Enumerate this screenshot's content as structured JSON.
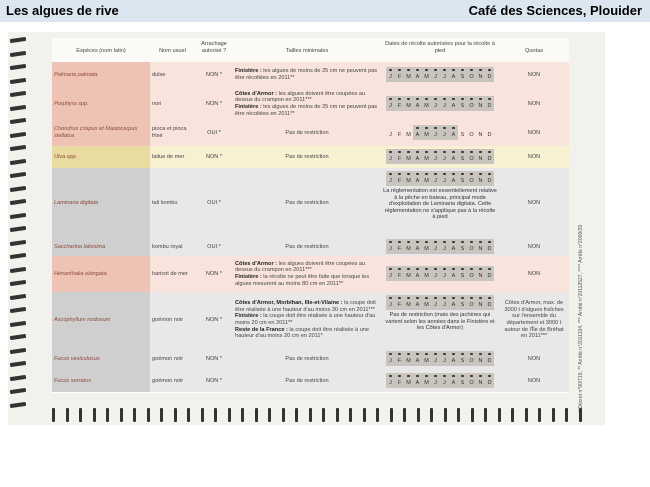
{
  "header": {
    "title": "Les algues de rive",
    "source": "Café des Sciences, Plouider"
  },
  "table": {
    "columns": [
      "Espèces (nom latin)",
      "Nom usuel",
      "Arrachage autorisé ?",
      "Tailles minimales",
      "Dates de récolte autorisées pour la récolte à pied",
      "Quotas"
    ],
    "months": [
      "J",
      "F",
      "M",
      "A",
      "M",
      "J",
      "J",
      "A",
      "S",
      "O",
      "N",
      "D"
    ],
    "rows": [
      {
        "species": "Palmaria palmata",
        "name": "dulse",
        "uproot": "NON *",
        "size_rules": [
          {
            "region": "Finistère :",
            "text": "les algues de moins de 25 cm ne peuvent pas être récoltées en 2011**"
          }
        ],
        "quota": "NON"
      },
      {
        "species": "Porphyra spp.",
        "name": "nori",
        "uproot": "NON *",
        "size_rules": [
          {
            "region": "Côtes d'Armor :",
            "text": "les algues doivent être coupées au dessus du crampon en 2011***"
          },
          {
            "region": "Finistère :",
            "text": "les algues de moins de 25 cm ne peuvent pas être récoltées en 2011**"
          }
        ],
        "quota": "NON"
      },
      {
        "species": "Chondrus crispus et Mastocarpus stellatus",
        "name": "pioca et pioca frisé",
        "uproot": "OUI *",
        "size_rules": [
          {
            "text": "Pas de restriction"
          }
        ],
        "quota": "NON"
      },
      {
        "species": "Ulva spp.",
        "name": "laitue de mer",
        "uproot": "NON *",
        "size_rules": [
          {
            "text": "Pas de restriction"
          }
        ],
        "quota": "NON"
      },
      {
        "species": "Laminaria digitata",
        "name": "tali kombu",
        "uproot": "OUI *",
        "size_rules": [
          {
            "text": "Pas de restriction"
          }
        ],
        "date_note": "La réglementation est essentiellement relative à la pêche en bateau, principal mode d'exploitation de Laminaria digitata. Cette réglementation ne s'applique pas à la récolte à pied",
        "quota": "NON"
      },
      {
        "species": "Saccharina latissima",
        "name": "kombu royal",
        "uproot": "OUI *",
        "size_rules": [
          {
            "text": "Pas de restriction"
          }
        ],
        "quota": "NON"
      },
      {
        "species": "Himanthalia elongata",
        "name": "haricot de mer",
        "uproot": "NON *",
        "size_rules": [
          {
            "region": "Côtes d'Armor :",
            "text": "les algues doivent être coupées au dessus du crampon en 2011***"
          },
          {
            "region": "Finistère :",
            "text": "la récolte ne peut être faite que lorsque les algues mesurent au moins 80 cm en 2011**"
          }
        ],
        "quota": "NON"
      },
      {
        "species": "Ascophyllum nodosum",
        "name": "goémon noir",
        "uproot": "NON *",
        "size_rules": [
          {
            "region": "Côtes d'Armor, Morbihan, Ille-et-Vilaine :",
            "text": "la coupe doit être réalisée à une hauteur d'au moins 30 cm en 2011***"
          },
          {
            "region": "Finistère :",
            "text": "la coupe doit être réalisée à une hauteur d'au moins 20 cm en 2011**"
          },
          {
            "region": "Reste de la France :",
            "text": "la coupe doit être réalisée à une hauteur d'au moins 20 cm en 2011*"
          }
        ],
        "date_note": "Pas de restriction (mais des jachères qui varient selon les années dans le Finistère et les Côtes d'Armor)",
        "quota": "Côtes d'Armor, max. de 3000 t d'algues fraîches sur l'ensemble du département et 3000 t autour de l'Île de Bréhat en 2011***"
      },
      {
        "species": "Fucus vesiculosus",
        "name": "goémon noir",
        "uproot": "NON *",
        "size_rules": [
          {
            "text": "Pas de restriction"
          }
        ],
        "quota": "NON"
      },
      {
        "species": "Fucus serratus",
        "name": "goémon noir",
        "uproot": "NON *",
        "size_rules": [
          {
            "text": "Pas de restriction"
          }
        ],
        "quota": "NON"
      }
    ],
    "footnote": "* Décret n°90/719, ** Arrêté n°2011334, *** Arrêté n°20112527, **** Arrêté n°2009/39"
  }
}
